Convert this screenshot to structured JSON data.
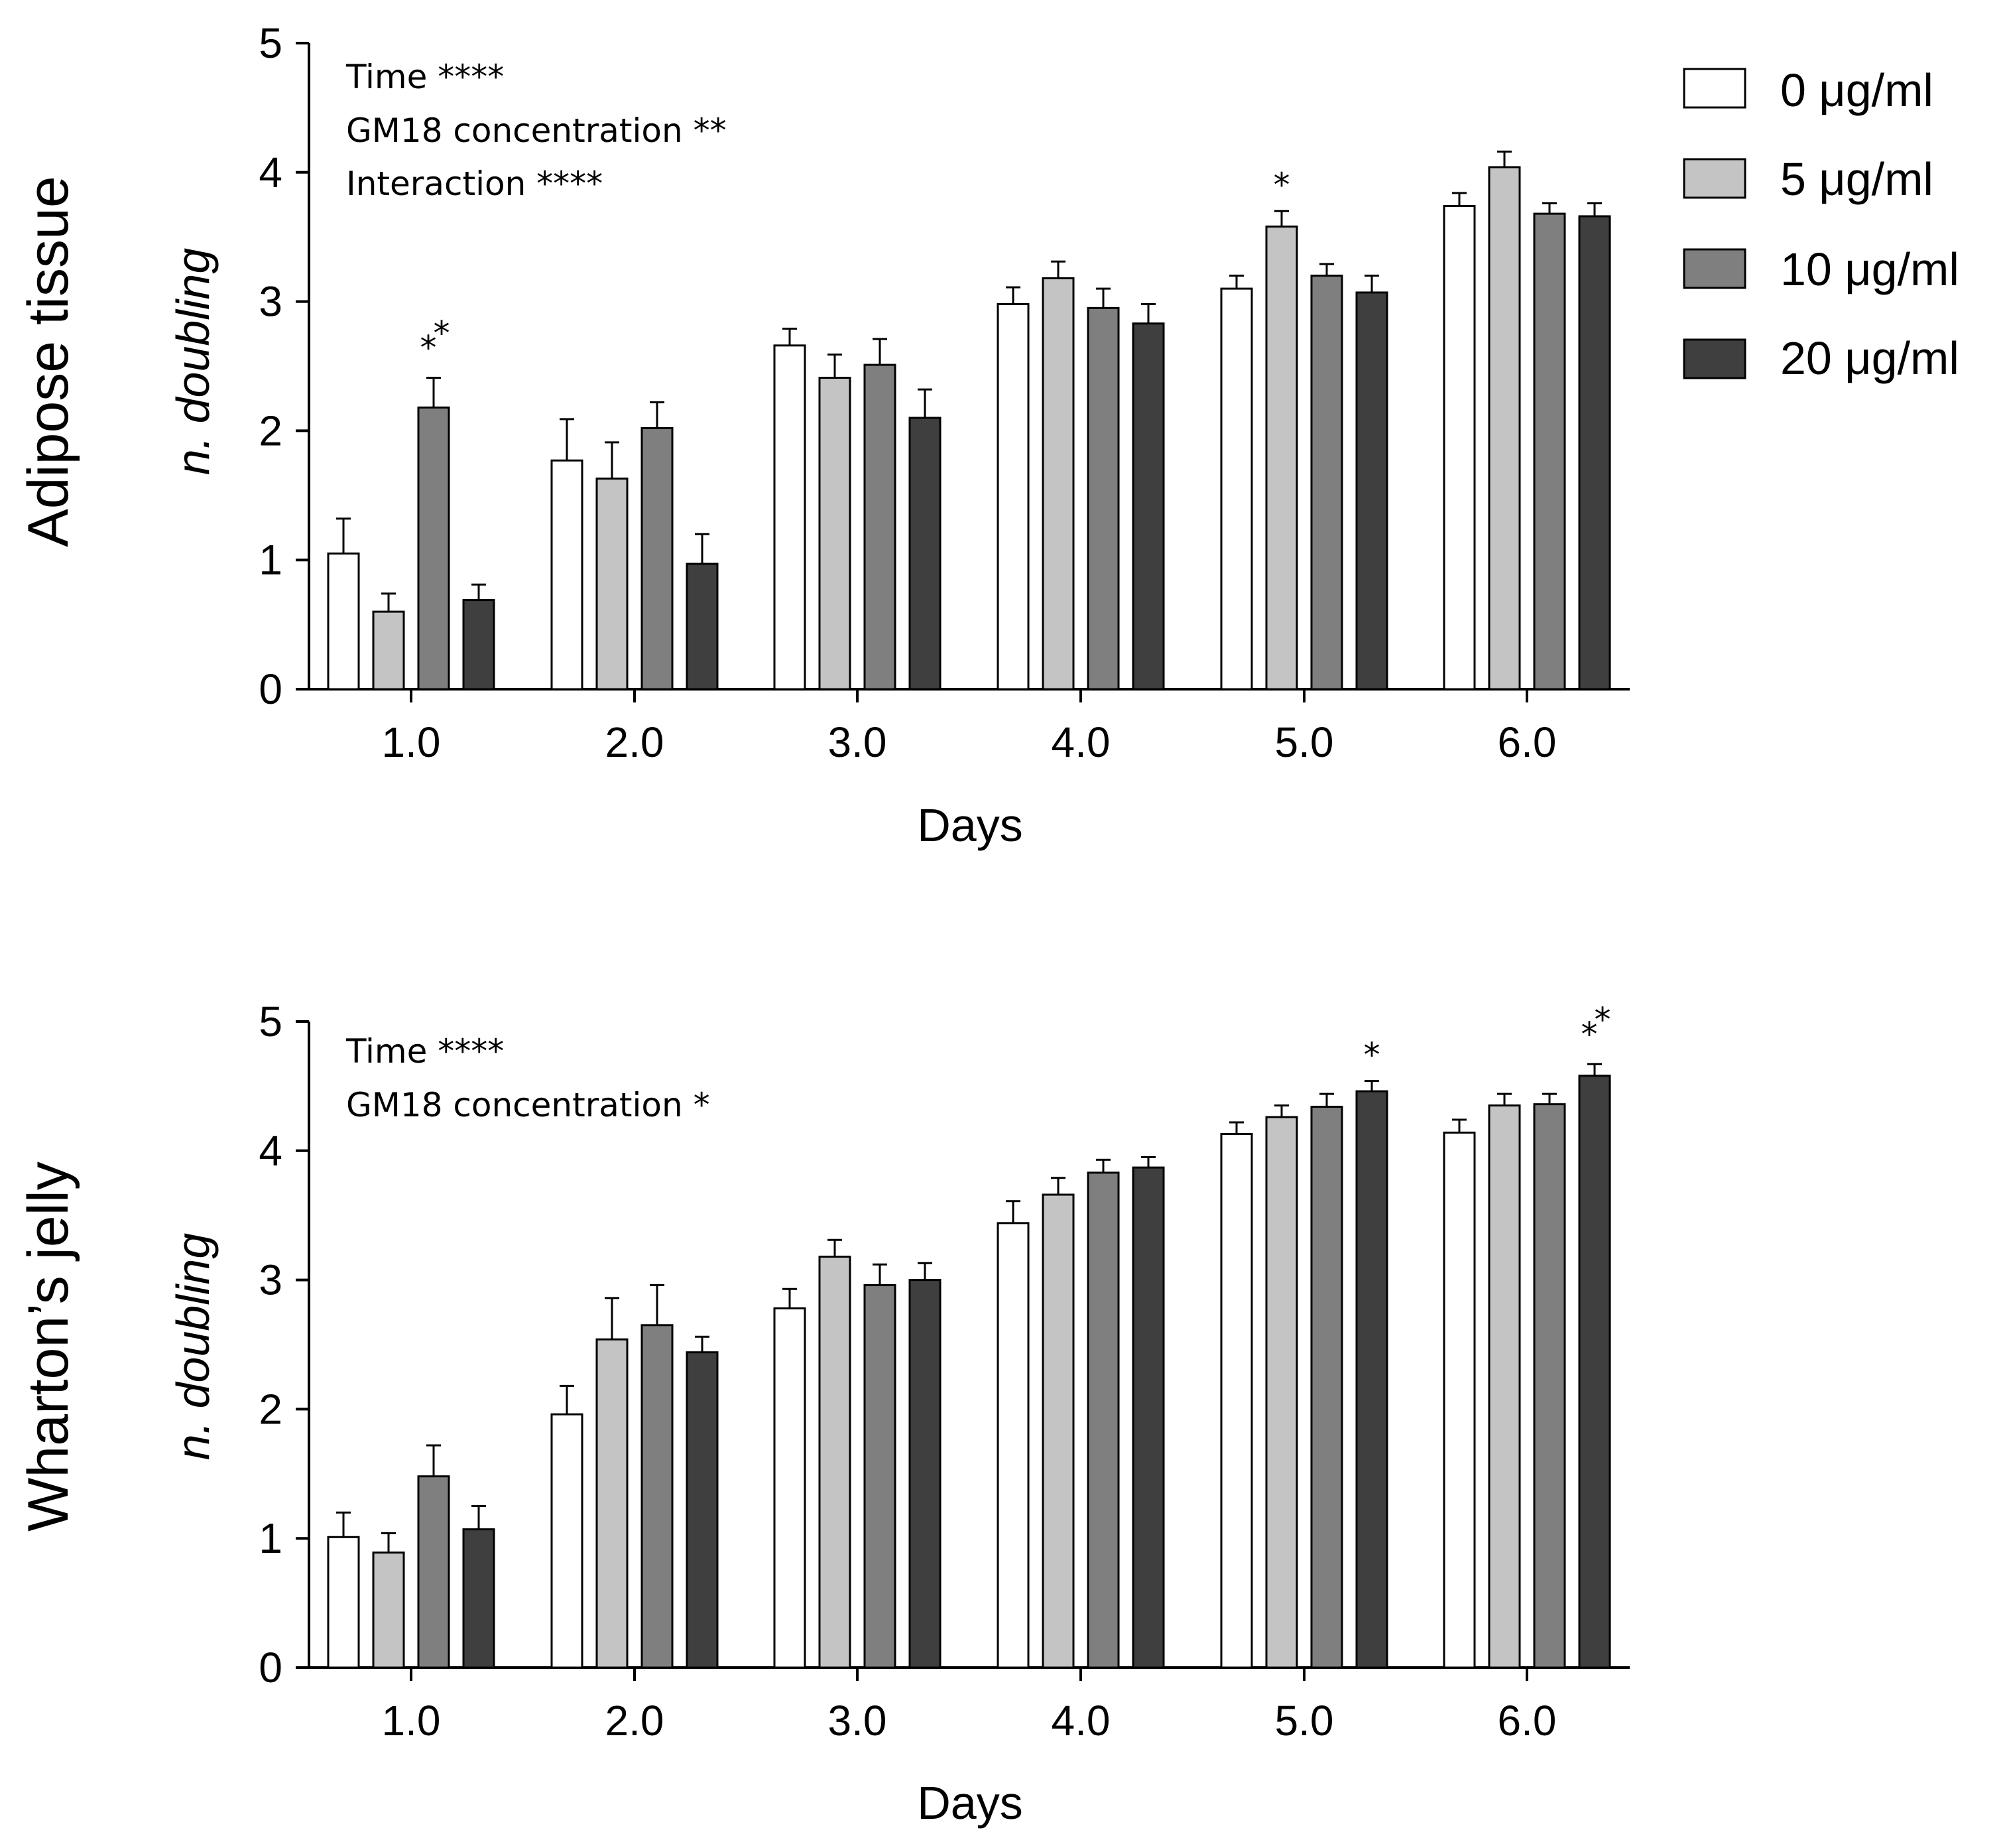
{
  "chart_data": [
    {
      "type": "bar",
      "panel_title": "Adipose tissue",
      "xlabel": "Days",
      "ylabel": "n. doubling",
      "ylim": [
        0,
        5
      ],
      "yticks": [
        "0",
        "1",
        "2",
        "3",
        "4",
        "5"
      ],
      "categories": [
        "1.0",
        "2.0",
        "3.0",
        "4.0",
        "5.0",
        "6.0"
      ],
      "stats_text": [
        "Time ****",
        "GM18 concentration **",
        "Interaction ****"
      ],
      "series": [
        {
          "name": "0 μg/ml",
          "color": "#ffffff",
          "values": [
            1.05,
            1.77,
            2.66,
            2.98,
            3.1,
            3.74
          ],
          "errors": [
            0.27,
            0.32,
            0.13,
            0.13,
            0.1,
            0.1
          ]
        },
        {
          "name": "5 μg/ml",
          "color": "#c4c4c4",
          "values": [
            0.6,
            1.63,
            2.41,
            3.18,
            3.58,
            4.04
          ],
          "errors": [
            0.14,
            0.28,
            0.18,
            0.13,
            0.12,
            0.12
          ]
        },
        {
          "name": "10 μg/ml",
          "color": "#7f7f7f",
          "values": [
            2.18,
            2.02,
            2.51,
            2.95,
            3.2,
            3.68
          ],
          "errors": [
            0.23,
            0.2,
            0.2,
            0.15,
            0.09,
            0.08
          ]
        },
        {
          "name": "20 μg/ml",
          "color": "#3f3f3f",
          "values": [
            0.69,
            0.97,
            2.1,
            2.83,
            3.07,
            3.66
          ],
          "errors": [
            0.12,
            0.23,
            0.22,
            0.15,
            0.13,
            0.1
          ]
        }
      ],
      "annotations": [
        {
          "category": "1.0",
          "series": "10 μg/ml",
          "text": "**"
        },
        {
          "category": "5.0",
          "series": "5 μg/ml",
          "text": "*"
        }
      ]
    },
    {
      "type": "bar",
      "panel_title": "Wharton’s jelly",
      "xlabel": "Days",
      "ylabel": "n. doubling",
      "ylim": [
        0,
        5
      ],
      "yticks": [
        "0",
        "1",
        "2",
        "3",
        "4",
        "5"
      ],
      "categories": [
        "1.0",
        "2.0",
        "3.0",
        "4.0",
        "5.0",
        "6.0"
      ],
      "stats_text": [
        "Time ****",
        "GM18 concentration *"
      ],
      "series": [
        {
          "name": "0 μg/ml",
          "color": "#ffffff",
          "values": [
            1.01,
            1.96,
            2.78,
            3.44,
            4.13,
            4.14
          ],
          "errors": [
            0.19,
            0.22,
            0.15,
            0.17,
            0.09,
            0.1
          ]
        },
        {
          "name": "5 μg/ml",
          "color": "#c4c4c4",
          "values": [
            0.89,
            2.54,
            3.18,
            3.66,
            4.26,
            4.35
          ],
          "errors": [
            0.15,
            0.32,
            0.13,
            0.13,
            0.09,
            0.09
          ]
        },
        {
          "name": "10 μg/ml",
          "color": "#7f7f7f",
          "values": [
            1.48,
            2.65,
            2.96,
            3.83,
            4.34,
            4.36
          ],
          "errors": [
            0.24,
            0.31,
            0.16,
            0.1,
            0.1,
            0.08
          ]
        },
        {
          "name": "20 μg/ml",
          "color": "#3f3f3f",
          "values": [
            1.07,
            2.44,
            3.0,
            3.87,
            4.46,
            4.58
          ],
          "errors": [
            0.18,
            0.12,
            0.13,
            0.08,
            0.08,
            0.09
          ]
        }
      ],
      "annotations": [
        {
          "category": "5.0",
          "series": "20 μg/ml",
          "text": "*"
        },
        {
          "category": "6.0",
          "series": "20 μg/ml",
          "text": "**"
        }
      ]
    }
  ],
  "legend": {
    "position": "top-right",
    "items": [
      {
        "label": "0 μg/ml",
        "color": "#ffffff"
      },
      {
        "label": "5 μg/ml",
        "color": "#c4c4c4"
      },
      {
        "label": "10 μg/ml",
        "color": "#7f7f7f"
      },
      {
        "label": "20 μg/ml",
        "color": "#3f3f3f"
      }
    ]
  }
}
